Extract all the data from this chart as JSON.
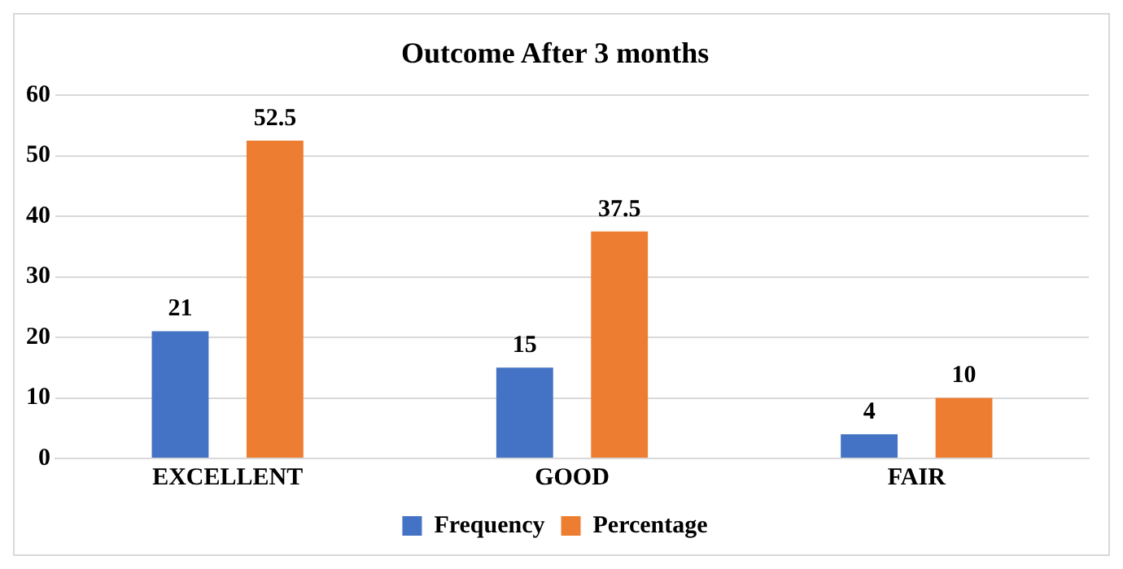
{
  "chart_data": {
    "type": "bar",
    "title": "Outcome After 3 months",
    "categories": [
      "EXCELLENT",
      "GOOD",
      "FAIR"
    ],
    "series": [
      {
        "name": "Frequency",
        "color": "#4472c4",
        "values": [
          21,
          15,
          4
        ]
      },
      {
        "name": "Percentage",
        "color": "#ed7d31",
        "values": [
          52.5,
          37.5,
          10
        ]
      }
    ],
    "ylim": [
      0,
      60
    ],
    "yticks": [
      0,
      10,
      20,
      30,
      40,
      50,
      60
    ],
    "grid": "y",
    "legend": "bottom",
    "data_labels": true
  }
}
